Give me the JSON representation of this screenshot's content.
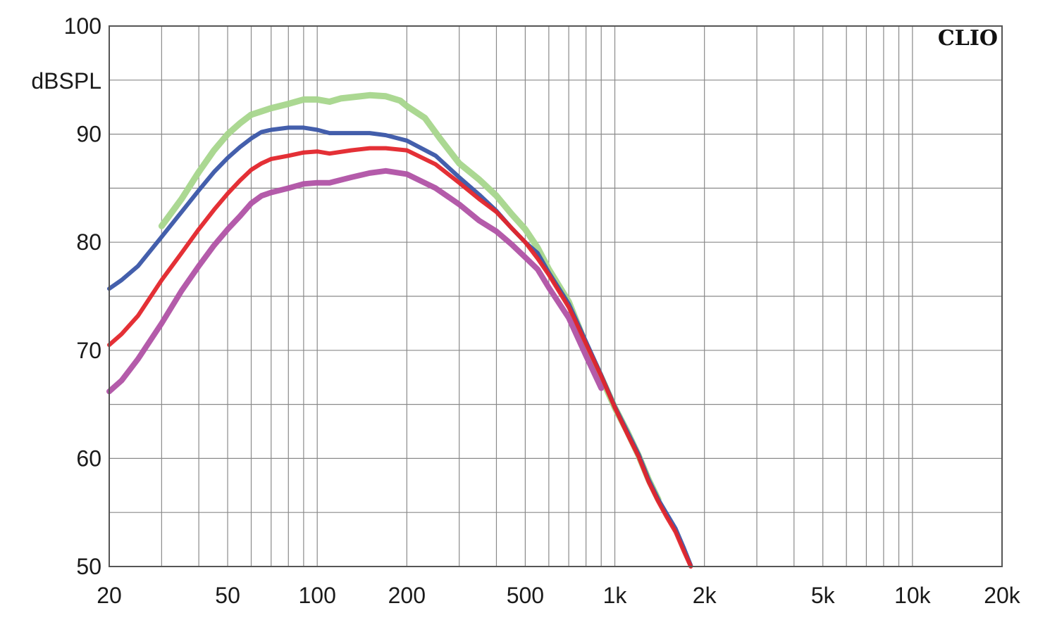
{
  "chart_data": {
    "type": "line",
    "brand": "CLIO",
    "ylabel": "dBSPL",
    "xlabel": "",
    "xscale": "log",
    "xlim": [
      20,
      20000
    ],
    "ylim": [
      50,
      100
    ],
    "grid": true,
    "x_ticks": [
      {
        "value": 20,
        "label": "20"
      },
      {
        "value": 50,
        "label": "50"
      },
      {
        "value": 100,
        "label": "100"
      },
      {
        "value": 200,
        "label": "200"
      },
      {
        "value": 500,
        "label": "500"
      },
      {
        "value": 1000,
        "label": "1k"
      },
      {
        "value": 2000,
        "label": "2k"
      },
      {
        "value": 5000,
        "label": "5k"
      },
      {
        "value": 10000,
        "label": "10k"
      },
      {
        "value": 20000,
        "label": "20k"
      }
    ],
    "y_ticks": [
      {
        "value": 100,
        "label": "100"
      },
      {
        "value": 90,
        "label": "90"
      },
      {
        "value": 80,
        "label": "80"
      },
      {
        "value": 70,
        "label": "70"
      },
      {
        "value": 60,
        "label": "60"
      },
      {
        "value": 50,
        "label": "50"
      }
    ],
    "series": [
      {
        "color": "#a6d68c",
        "stroke_width": 9,
        "points": [
          [
            30,
            81.5
          ],
          [
            35,
            84
          ],
          [
            40,
            86.5
          ],
          [
            45,
            88.5
          ],
          [
            50,
            90
          ],
          [
            55,
            91
          ],
          [
            60,
            91.8
          ],
          [
            70,
            92.4
          ],
          [
            80,
            92.8
          ],
          [
            90,
            93.2
          ],
          [
            100,
            93.2
          ],
          [
            110,
            93
          ],
          [
            120,
            93.3
          ],
          [
            150,
            93.6
          ],
          [
            170,
            93.5
          ],
          [
            190,
            93.1
          ],
          [
            200,
            92.6
          ],
          [
            230,
            91.5
          ],
          [
            260,
            89.5
          ],
          [
            300,
            87.3
          ],
          [
            350,
            85.8
          ],
          [
            400,
            84.3
          ],
          [
            450,
            82.6
          ],
          [
            500,
            81.2
          ],
          [
            550,
            79.5
          ],
          [
            600,
            77.5
          ],
          [
            700,
            74.5
          ],
          [
            800,
            70.5
          ],
          [
            900,
            67.5
          ],
          [
            1000,
            64.7
          ],
          [
            1100,
            62.5
          ],
          [
            1200,
            60.3
          ],
          [
            1300,
            58
          ],
          [
            1400,
            56.2
          ]
        ]
      },
      {
        "color": "#3a56a8",
        "stroke_width": 6,
        "points": [
          [
            20,
            75.7
          ],
          [
            22,
            76.5
          ],
          [
            25,
            77.8
          ],
          [
            30,
            80.5
          ],
          [
            35,
            82.8
          ],
          [
            40,
            84.8
          ],
          [
            45,
            86.5
          ],
          [
            50,
            87.8
          ],
          [
            55,
            88.8
          ],
          [
            60,
            89.6
          ],
          [
            65,
            90.2
          ],
          [
            70,
            90.4
          ],
          [
            80,
            90.6
          ],
          [
            90,
            90.6
          ],
          [
            100,
            90.4
          ],
          [
            110,
            90.1
          ],
          [
            130,
            90.1
          ],
          [
            150,
            90.1
          ],
          [
            170,
            89.9
          ],
          [
            200,
            89.4
          ],
          [
            250,
            88
          ],
          [
            300,
            86
          ],
          [
            350,
            84.4
          ],
          [
            400,
            82.9
          ],
          [
            450,
            81.3
          ],
          [
            500,
            80
          ],
          [
            550,
            79
          ],
          [
            600,
            77.2
          ],
          [
            700,
            74.3
          ],
          [
            800,
            70.8
          ],
          [
            900,
            67.7
          ],
          [
            1000,
            64.8
          ],
          [
            1100,
            62.5
          ],
          [
            1200,
            60.4
          ],
          [
            1300,
            58
          ],
          [
            1400,
            56.2
          ],
          [
            1500,
            54.8
          ],
          [
            1600,
            53.5
          ],
          [
            1700,
            51.8
          ],
          [
            1800,
            50.1
          ]
        ]
      },
      {
        "color": "#e3252b",
        "stroke_width": 6,
        "points": [
          [
            20,
            70.5
          ],
          [
            22,
            71.5
          ],
          [
            25,
            73.2
          ],
          [
            30,
            76.5
          ],
          [
            35,
            79
          ],
          [
            40,
            81.2
          ],
          [
            45,
            83
          ],
          [
            50,
            84.5
          ],
          [
            55,
            85.7
          ],
          [
            60,
            86.7
          ],
          [
            65,
            87.3
          ],
          [
            70,
            87.7
          ],
          [
            80,
            88
          ],
          [
            90,
            88.3
          ],
          [
            100,
            88.4
          ],
          [
            110,
            88.2
          ],
          [
            130,
            88.5
          ],
          [
            150,
            88.7
          ],
          [
            170,
            88.7
          ],
          [
            200,
            88.5
          ],
          [
            250,
            87.2
          ],
          [
            300,
            85.5
          ],
          [
            350,
            84
          ],
          [
            400,
            82.8
          ],
          [
            450,
            81.3
          ],
          [
            500,
            80
          ],
          [
            550,
            78.5
          ],
          [
            600,
            77
          ],
          [
            700,
            74
          ],
          [
            800,
            70.6
          ],
          [
            900,
            67.6
          ],
          [
            1000,
            64.7
          ],
          [
            1100,
            62.3
          ],
          [
            1200,
            60.2
          ],
          [
            1300,
            57.8
          ],
          [
            1400,
            56
          ],
          [
            1500,
            54.5
          ],
          [
            1600,
            53.2
          ],
          [
            1700,
            51.5
          ],
          [
            1800,
            50
          ]
        ]
      },
      {
        "color": "#b052a5",
        "stroke_width": 8,
        "points": [
          [
            20,
            66.2
          ],
          [
            22,
            67.2
          ],
          [
            25,
            69.2
          ],
          [
            30,
            72.5
          ],
          [
            35,
            75.5
          ],
          [
            40,
            77.8
          ],
          [
            45,
            79.7
          ],
          [
            50,
            81.2
          ],
          [
            55,
            82.4
          ],
          [
            60,
            83.6
          ],
          [
            65,
            84.3
          ],
          [
            70,
            84.6
          ],
          [
            80,
            85
          ],
          [
            90,
            85.4
          ],
          [
            100,
            85.5
          ],
          [
            110,
            85.5
          ],
          [
            130,
            86
          ],
          [
            150,
            86.4
          ],
          [
            170,
            86.6
          ],
          [
            200,
            86.3
          ],
          [
            250,
            85
          ],
          [
            300,
            83.5
          ],
          [
            350,
            82
          ],
          [
            400,
            81
          ],
          [
            450,
            79.8
          ],
          [
            500,
            78.6
          ],
          [
            550,
            77.5
          ],
          [
            600,
            75.8
          ],
          [
            700,
            73
          ],
          [
            800,
            69.5
          ],
          [
            900,
            66.5
          ]
        ]
      }
    ]
  }
}
